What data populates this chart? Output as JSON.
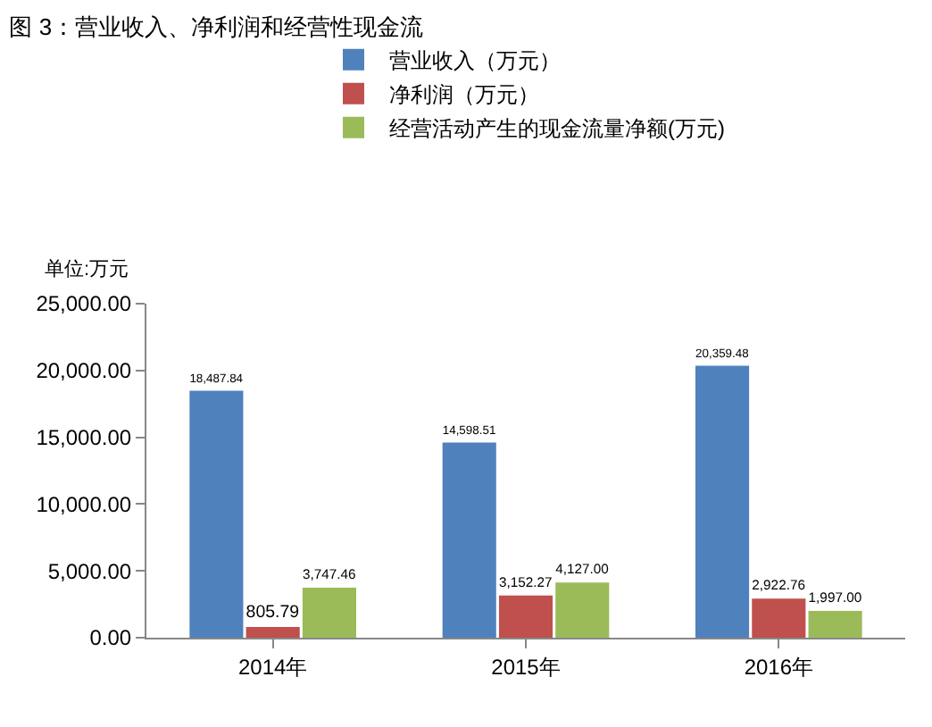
{
  "chart_data": {
    "type": "bar",
    "title": "图 3：营业收入、净利润和经营性现金流",
    "ylabel": "单位:万元",
    "categories": [
      "2014年",
      "2015年",
      "2016年"
    ],
    "series": [
      {
        "name": "营业收入（万元）",
        "color": "#4f81bd",
        "values": [
          18487.84,
          14598.51,
          20359.48
        ],
        "value_labels": [
          "18,487.84",
          "14,598.51",
          "20,359.48"
        ]
      },
      {
        "name": "净利润（万元）",
        "color": "#c0504d",
        "values": [
          805.79,
          3152.27,
          2922.76
        ],
        "value_labels": [
          "805.79",
          "3,152.27",
          "2,922.76"
        ]
      },
      {
        "name": "经营活动产生的现金流量净额(万元)",
        "color": "#9bbb59",
        "values": [
          3747.46,
          4127.0,
          1997.0
        ],
        "value_labels": [
          "3,747.46",
          "4,127.00",
          "1,997.00"
        ]
      }
    ],
    "ylim": [
      0,
      25000
    ],
    "yticks": [
      {
        "value": 0,
        "label": "0.00"
      },
      {
        "value": 5000,
        "label": "5,000.00"
      },
      {
        "value": 10000,
        "label": "10,000.00"
      },
      {
        "value": 15000,
        "label": "15,000.00"
      },
      {
        "value": 20000,
        "label": "20,000.00"
      },
      {
        "value": 25000,
        "label": "25,000.00"
      }
    ],
    "grid": false,
    "legend": "top"
  }
}
